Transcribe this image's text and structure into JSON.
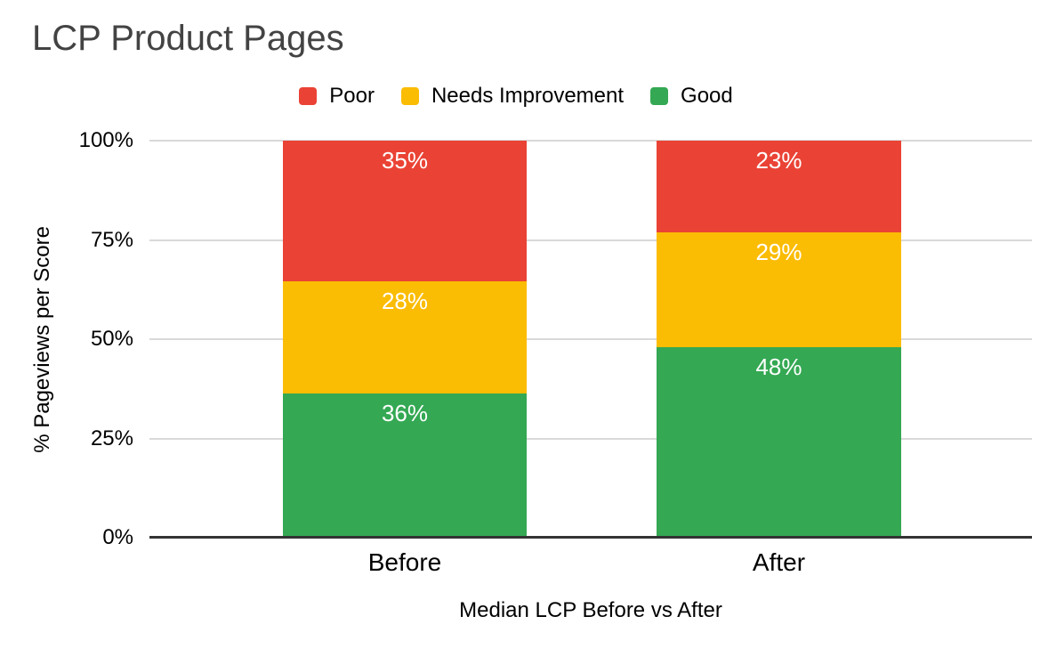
{
  "chart_data": {
    "type": "bar",
    "variant": "stacked-100-percent",
    "title": "LCP Product Pages",
    "title_color": "#434343",
    "categories": [
      "Before",
      "After"
    ],
    "series": [
      {
        "name": "Poor",
        "color": "#EA4335",
        "values": [
          35,
          23
        ]
      },
      {
        "name": "Needs Improvement",
        "color": "#FBBC04",
        "values": [
          28,
          29
        ]
      },
      {
        "name": "Good",
        "color": "#34A853",
        "values": [
          36,
          48
        ]
      }
    ],
    "data_label_suffix": "%",
    "data_label_color": "#ffffff",
    "xlabel": "Median LCP Before vs After",
    "ylabel": "% Pageviews per Score",
    "y_ticks": [
      "0%",
      "25%",
      "50%",
      "75%",
      "100%"
    ],
    "ylim": [
      0,
      100
    ],
    "grid": true,
    "gridline_color": "#d9d9d9",
    "axis_line_color": "#333333",
    "legend_position": "top",
    "background_color": "#ffffff"
  }
}
